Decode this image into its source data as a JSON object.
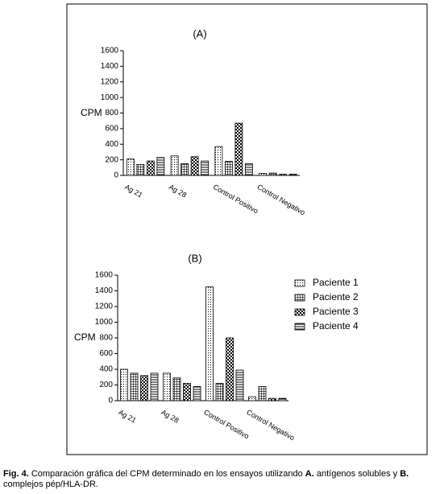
{
  "chart_data": [
    {
      "type": "bar",
      "title": "(A)",
      "y_label": "CPM",
      "categories": [
        "Ag 21",
        "Ag 28",
        "Control Positivo",
        "Control Negativo"
      ],
      "series": [
        {
          "color": "#000000",
          "pattern": "dots",
          "values": [
            210,
            250,
            370,
            25
          ]
        },
        {
          "color": "#000000",
          "pattern": "grid",
          "values": [
            140,
            150,
            180,
            30
          ]
        },
        {
          "color": "#000000",
          "pattern": "checker",
          "values": [
            185,
            240,
            670,
            15
          ]
        },
        {
          "color": "#000000",
          "pattern": "hlines",
          "values": [
            230,
            185,
            150,
            15
          ]
        }
      ],
      "ylim": [
        0,
        1600
      ],
      "yticks": [
        0,
        200,
        400,
        600,
        800,
        1000,
        1200,
        1400,
        1600
      ],
      "legend": "none"
    },
    {
      "type": "bar",
      "title": "(B)",
      "y_label": "CPM",
      "categories": [
        "Ag 21",
        "Ag 28",
        "Control Positivo",
        "Control Negativo"
      ],
      "series": [
        {
          "name": "Paciente 1",
          "color": "#000000",
          "pattern": "dots",
          "values": [
            400,
            350,
            1450,
            50
          ]
        },
        {
          "name": "Paciente 2",
          "color": "#000000",
          "pattern": "grid",
          "values": [
            350,
            290,
            220,
            180
          ]
        },
        {
          "name": "Paciente 3",
          "color": "#000000",
          "pattern": "checker",
          "values": [
            320,
            220,
            800,
            30
          ]
        },
        {
          "name": "Paciente 4",
          "color": "#000000",
          "pattern": "hlines",
          "values": [
            350,
            180,
            390,
            30
          ]
        }
      ],
      "ylim": [
        0,
        1600
      ],
      "yticks": [
        0,
        200,
        400,
        600,
        800,
        1000,
        1200,
        1400,
        1600
      ],
      "legend": "right"
    }
  ],
  "caption": [
    {
      "text": "Fig. 4.",
      "bold": true
    },
    {
      "text": " Comparación gráfica del CPM determinado en los ensayos utilizando "
    },
    {
      "text": "A.",
      "bold": true
    },
    {
      "text": " antígenos solubles y "
    },
    {
      "text": "B.",
      "bold": true
    },
    {
      "text": " complejos pép/HLA-DR."
    }
  ]
}
